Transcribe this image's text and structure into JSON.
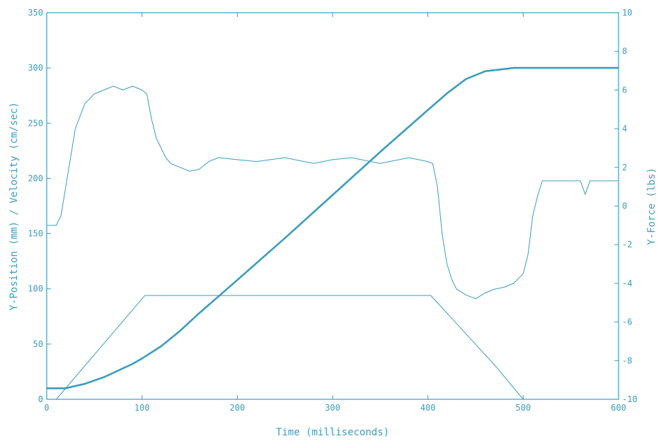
{
  "colors": {
    "ink": "#3d9cbd",
    "background": "#ffffff"
  },
  "chart_data": {
    "type": "line",
    "title": "",
    "xlabel": "Time (milliseconds)",
    "ylabel_left": "Y-Position (mm) / Velocity (cm/sec)",
    "ylabel_right": "Y-Force (lbs)",
    "xlim": [
      0,
      600
    ],
    "ylim_left": [
      0,
      350
    ],
    "ylim_right": [
      -10,
      10
    ],
    "x_ticks": [
      "0",
      "100",
      "200",
      "300",
      "400",
      "500",
      "600"
    ],
    "y_left_ticks": [
      "0",
      "50",
      "100",
      "150",
      "200",
      "250",
      "300",
      "350"
    ],
    "y_right_ticks": [
      "-10",
      "-8",
      "-6",
      "-4",
      "-2",
      "0",
      "2",
      "4",
      "6",
      "8",
      "10"
    ],
    "grid": false,
    "series": [
      {
        "axis": "left",
        "x": [
          0,
          10,
          20,
          30,
          40,
          50,
          60,
          70,
          80,
          90,
          100,
          120,
          140,
          160,
          180,
          200,
          250,
          300,
          350,
          400,
          420,
          440,
          460,
          480,
          490,
          500,
          510,
          520,
          550,
          600
        ],
        "y": [
          10,
          10,
          10,
          12,
          14,
          17,
          20,
          24,
          28,
          32,
          37,
          48,
          62,
          78,
          93,
          108,
          146,
          185,
          224,
          262,
          277,
          290,
          297,
          299,
          300,
          300,
          300,
          300,
          300,
          300
        ]
      },
      {
        "axis": "left",
        "x": [
          0,
          10,
          103,
          403,
          470,
          500,
          600
        ],
        "y": [
          0,
          0,
          94,
          94,
          31,
          0,
          0
        ]
      },
      {
        "axis": "right",
        "x": [
          0,
          10,
          15,
          20,
          25,
          30,
          40,
          50,
          60,
          70,
          80,
          90,
          100,
          105,
          110,
          115,
          120,
          125,
          130,
          140,
          150,
          160,
          170,
          180,
          200,
          220,
          250,
          280,
          300,
          320,
          350,
          380,
          400,
          405,
          410,
          415,
          420,
          425,
          430,
          440,
          450,
          460,
          470,
          480,
          490,
          500,
          505,
          510,
          515,
          520,
          540,
          560,
          565,
          570,
          600
        ],
        "y": [
          -1.0,
          -1.0,
          -0.5,
          1.0,
          2.5,
          4.0,
          5.3,
          5.8,
          6.0,
          6.2,
          6.0,
          6.2,
          6.0,
          5.8,
          4.5,
          3.5,
          3.0,
          2.5,
          2.2,
          2.0,
          1.8,
          1.9,
          2.3,
          2.5,
          2.4,
          2.3,
          2.5,
          2.2,
          2.4,
          2.5,
          2.2,
          2.5,
          2.3,
          2.2,
          1.0,
          -1.5,
          -3.0,
          -3.8,
          -4.3,
          -4.6,
          -4.8,
          -4.5,
          -4.3,
          -4.2,
          -4.0,
          -3.5,
          -2.5,
          -0.5,
          0.5,
          1.3,
          1.3,
          1.3,
          0.6,
          1.3,
          1.3
        ]
      }
    ]
  }
}
